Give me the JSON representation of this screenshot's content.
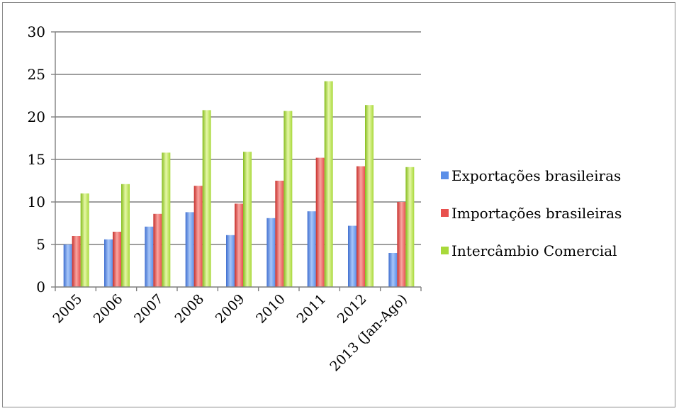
{
  "chart_data": {
    "type": "bar",
    "title": "",
    "xlabel": "",
    "ylabel": "",
    "ylim": [
      0,
      30
    ],
    "yticks": [
      0,
      5,
      10,
      15,
      20,
      25,
      30
    ],
    "categories": [
      "2005",
      "2006",
      "2007",
      "2008",
      "2009",
      "2010",
      "2011",
      "2012",
      "2013 (Jan-Ago)"
    ],
    "series": [
      {
        "name": "Exportações brasileiras",
        "color": "#5b8fe8",
        "values": [
          5.0,
          5.6,
          7.1,
          8.8,
          6.1,
          8.1,
          8.9,
          7.2,
          4.0
        ]
      },
      {
        "name": "Importações brasileiras",
        "color": "#e8504e",
        "values": [
          6.0,
          6.5,
          8.6,
          11.9,
          9.8,
          12.5,
          15.2,
          14.2,
          10.0
        ]
      },
      {
        "name": "Intercâmbio Comercial",
        "color": "#a8d93a",
        "values": [
          11.0,
          12.1,
          15.8,
          20.8,
          15.9,
          20.7,
          24.2,
          21.4,
          14.1
        ]
      }
    ],
    "grid": true,
    "legend": "right"
  }
}
